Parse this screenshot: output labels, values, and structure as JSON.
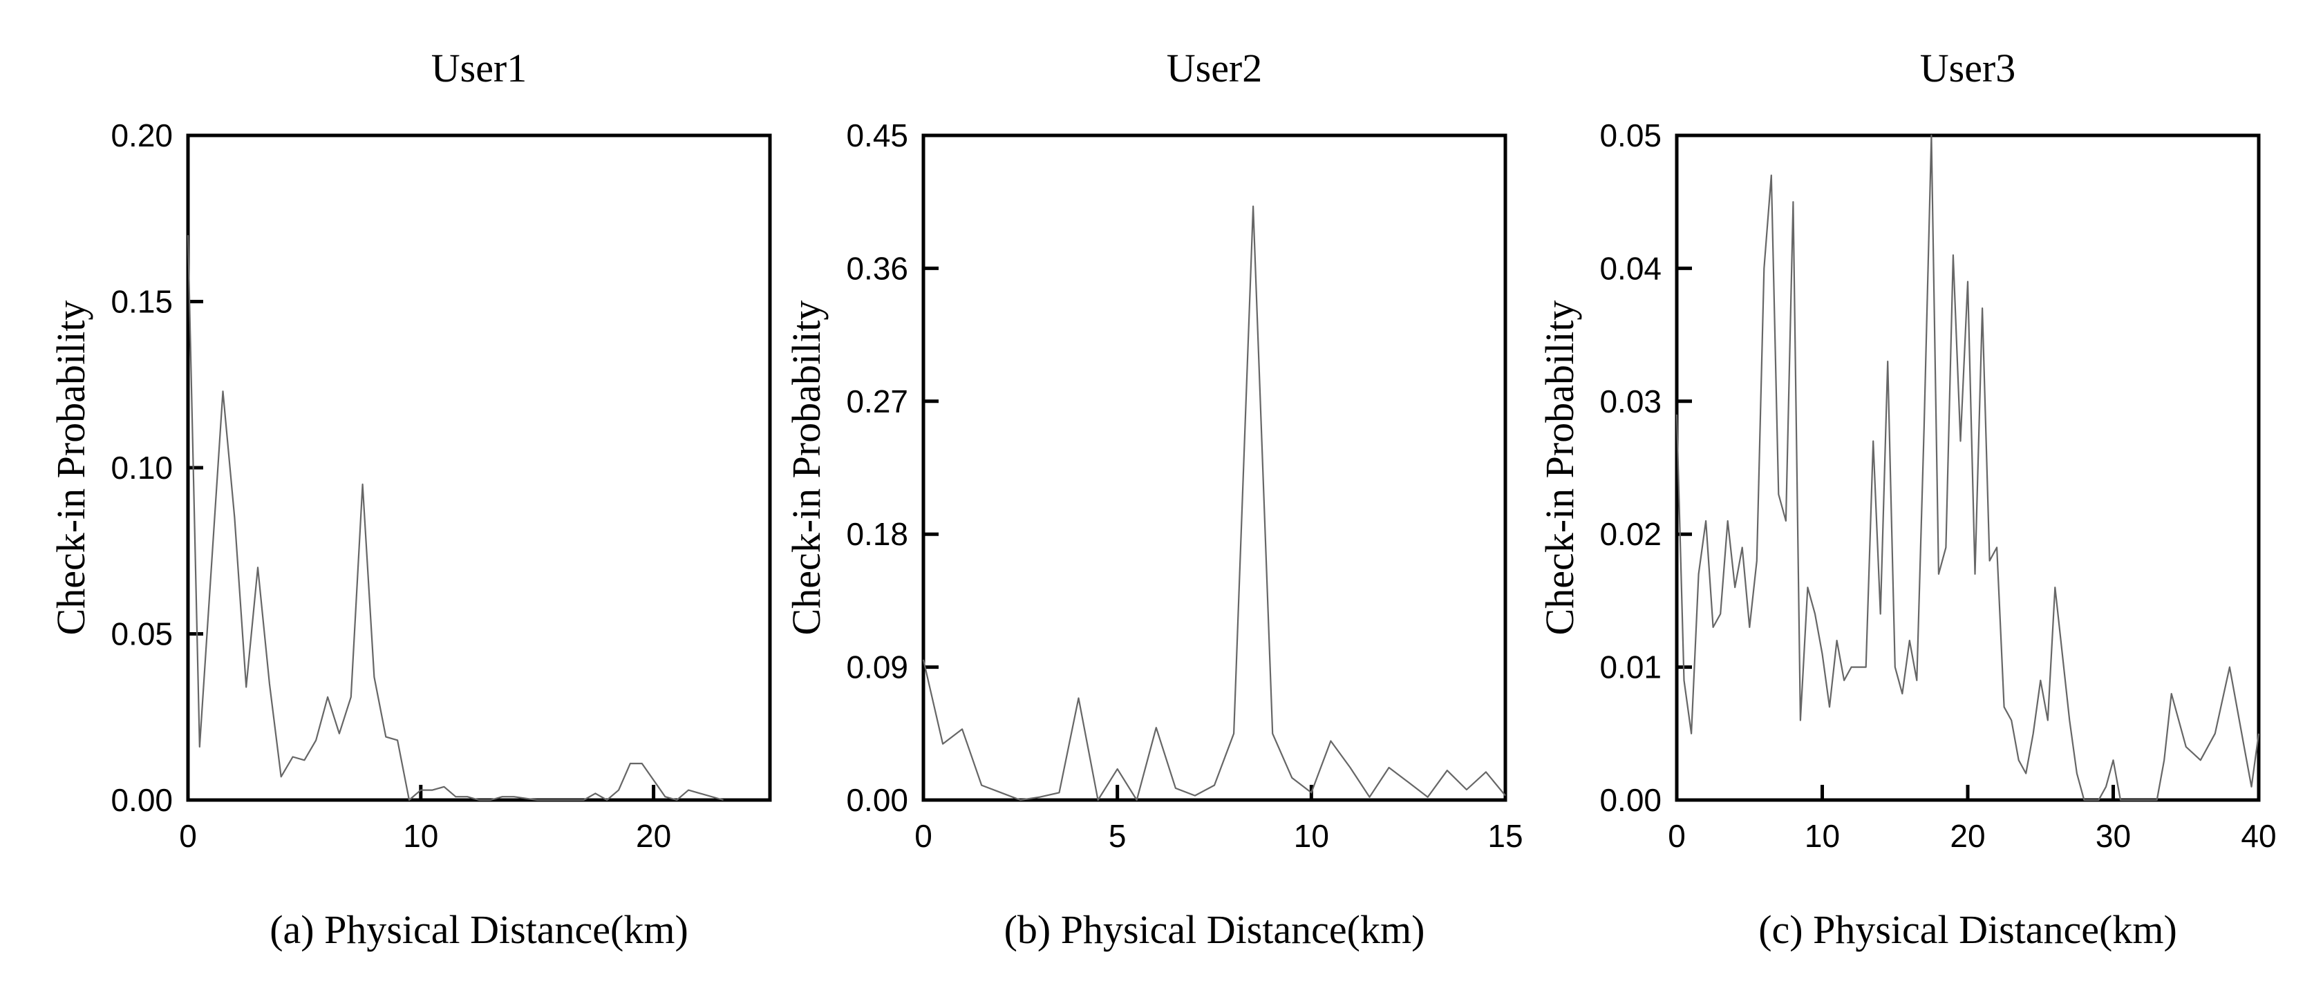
{
  "chart_data": [
    {
      "type": "line",
      "title": "User1",
      "caption": "(a)  Physical Distance(km)",
      "ylabel": "Check-in Probability",
      "xlim": [
        0,
        25
      ],
      "ylim": [
        0,
        0.2
      ],
      "xticks": [
        0,
        10,
        20
      ],
      "yticks": [
        0.0,
        0.05,
        0.1,
        0.15,
        0.2
      ],
      "x_tick_labels": [
        "0",
        "10",
        "20"
      ],
      "y_tick_labels": [
        "0.00",
        "0.05",
        "0.10",
        "0.15",
        "0.20"
      ],
      "color": "#666666",
      "series": [
        {
          "x": [
            0,
            0.5,
            1.5,
            2.0,
            2.5,
            3.0,
            3.5,
            4.0,
            4.5,
            5.0,
            5.5,
            6.0,
            6.5,
            7.0,
            7.5,
            8.0,
            8.5,
            9.0,
            9.5,
            10.0,
            10.5,
            11.0,
            11.5,
            12.0,
            12.5,
            13.0,
            13.5,
            14.0,
            15.0,
            16.0,
            17.0,
            17.5,
            18.0,
            18.5,
            19.0,
            19.5,
            20.0,
            20.5,
            21.0,
            21.5,
            22.0,
            23.0
          ],
          "y": [
            0.17,
            0.016,
            0.123,
            0.085,
            0.034,
            0.07,
            0.035,
            0.007,
            0.013,
            0.012,
            0.018,
            0.031,
            0.02,
            0.031,
            0.095,
            0.037,
            0.019,
            0.018,
            0.0,
            0.003,
            0.003,
            0.004,
            0.001,
            0.001,
            0.0,
            0.0,
            0.001,
            0.001,
            0.0,
            0.0,
            0.0,
            0.002,
            0.0,
            0.003,
            0.011,
            0.011,
            0.006,
            0.001,
            0.0,
            0.003,
            0.002,
            0.0
          ]
        }
      ]
    },
    {
      "type": "line",
      "title": "User2",
      "caption": "(b)  Physical Distance(km)",
      "ylabel": "Check-in Probability",
      "xlim": [
        0,
        15
      ],
      "ylim": [
        0,
        0.45
      ],
      "xticks": [
        0,
        5,
        10,
        15
      ],
      "yticks": [
        0.0,
        0.09,
        0.18,
        0.27,
        0.36,
        0.45
      ],
      "x_tick_labels": [
        "0",
        "5",
        "10",
        "15"
      ],
      "y_tick_labels": [
        "0.00",
        "0.09",
        "0.18",
        "0.27",
        "0.36",
        "0.45"
      ],
      "color": "#666666",
      "series": [
        {
          "x": [
            0,
            0.5,
            1.0,
            1.5,
            2.0,
            2.5,
            3.0,
            3.5,
            4.0,
            4.5,
            5.0,
            5.5,
            6.0,
            6.5,
            7.0,
            7.5,
            8.0,
            8.5,
            9.0,
            9.5,
            10.0,
            10.5,
            11.0,
            11.5,
            12.0,
            12.5,
            13.0,
            13.5,
            14.0,
            14.5,
            15.0
          ],
          "y": [
            0.095,
            0.038,
            0.048,
            0.01,
            0.005,
            0.0,
            0.002,
            0.005,
            0.069,
            0.0,
            0.021,
            0.0,
            0.049,
            0.008,
            0.003,
            0.01,
            0.045,
            0.402,
            0.045,
            0.015,
            0.005,
            0.04,
            0.022,
            0.002,
            0.022,
            0.012,
            0.002,
            0.02,
            0.007,
            0.019,
            0.003
          ]
        }
      ]
    },
    {
      "type": "line",
      "title": "User3",
      "caption": "(c)  Physical Distance(km)",
      "ylabel": "Check-in Probability",
      "xlim": [
        0,
        40
      ],
      "ylim": [
        0,
        0.05
      ],
      "xticks": [
        0,
        10,
        20,
        30,
        40
      ],
      "yticks": [
        0.0,
        0.01,
        0.02,
        0.03,
        0.04,
        0.05
      ],
      "x_tick_labels": [
        "0",
        "10",
        "20",
        "30",
        "40"
      ],
      "y_tick_labels": [
        "0.00",
        "0.01",
        "0.02",
        "0.03",
        "0.04",
        "0.05"
      ],
      "color": "#666666",
      "series": [
        {
          "x": [
            0,
            0.5,
            1.0,
            1.5,
            2.0,
            2.5,
            3.0,
            3.5,
            4.0,
            4.5,
            5.0,
            5.5,
            6.0,
            6.5,
            7.0,
            7.5,
            8.0,
            8.5,
            9.0,
            9.5,
            10.0,
            10.5,
            11.0,
            11.5,
            12.0,
            12.5,
            13.0,
            13.5,
            14.0,
            14.5,
            15.0,
            15.5,
            16.0,
            16.5,
            17.0,
            17.5,
            18.0,
            18.5,
            19.0,
            19.5,
            20.0,
            20.5,
            21.0,
            21.5,
            22.0,
            22.5,
            23.0,
            23.5,
            24.0,
            24.5,
            25.0,
            25.5,
            26.0,
            26.5,
            27.0,
            27.5,
            28.0,
            28.5,
            29.0,
            29.5,
            30.0,
            30.5,
            31.0,
            31.5,
            32.0,
            32.5,
            33.0,
            33.5,
            34.0,
            35.0,
            36.0,
            37.0,
            38.0,
            39.0,
            39.5,
            40.0
          ],
          "y": [
            0.029,
            0.009,
            0.005,
            0.017,
            0.021,
            0.013,
            0.014,
            0.021,
            0.016,
            0.019,
            0.013,
            0.018,
            0.04,
            0.047,
            0.023,
            0.021,
            0.045,
            0.006,
            0.016,
            0.014,
            0.011,
            0.007,
            0.012,
            0.009,
            0.01,
            0.01,
            0.01,
            0.027,
            0.014,
            0.033,
            0.01,
            0.008,
            0.012,
            0.009,
            0.028,
            0.05,
            0.017,
            0.019,
            0.041,
            0.027,
            0.039,
            0.017,
            0.037,
            0.018,
            0.019,
            0.007,
            0.006,
            0.003,
            0.002,
            0.005,
            0.009,
            0.006,
            0.016,
            0.011,
            0.006,
            0.002,
            0.0,
            0.0,
            0.0,
            0.001,
            0.003,
            0.0,
            0.0,
            0.0,
            0.0,
            0.0,
            0.0,
            0.003,
            0.008,
            0.004,
            0.003,
            0.005,
            0.01,
            0.004,
            0.001,
            0.005
          ]
        }
      ]
    }
  ]
}
